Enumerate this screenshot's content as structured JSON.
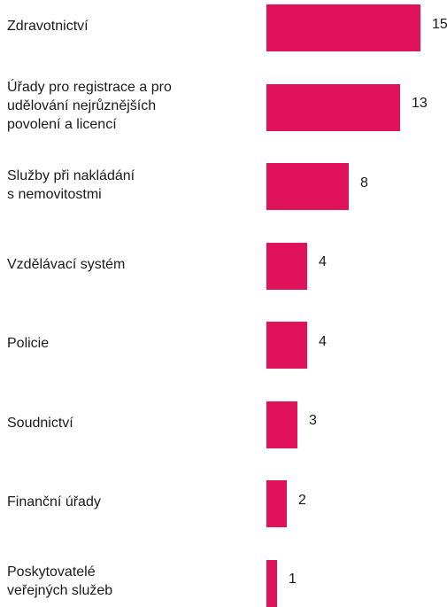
{
  "chart_data": {
    "type": "bar",
    "orientation": "horizontal",
    "categories": [
      "Zdravotnictví",
      "Úřady pro registrace a pro\nudělování nejrůznějších\npovolení a licencí",
      "Služby při nakládání\ns nemovitostmi",
      "Vzdělávací systém",
      "Policie",
      "Soudnictví",
      "Finanční úřady",
      "Poskytovatelé\nveřejných služeb"
    ],
    "values": [
      15,
      13,
      8,
      4,
      4,
      3,
      2,
      1
    ],
    "value_labels": [
      "15",
      "13",
      "8",
      "4",
      "4",
      "3",
      "2",
      "1"
    ],
    "bar_color": "#e0125a",
    "xlim": [
      0,
      15
    ],
    "grid": false,
    "legend": "none"
  }
}
